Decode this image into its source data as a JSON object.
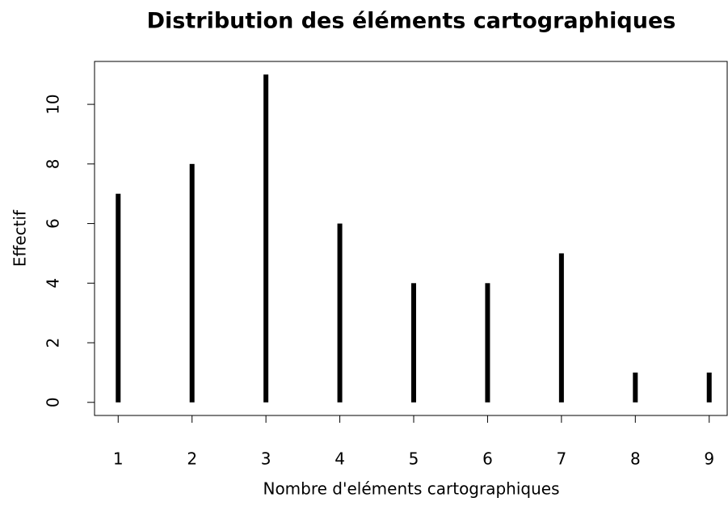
{
  "chart_data": {
    "type": "needle",
    "title": "Distribution des éléments cartographiques",
    "x_label": "Nombre d'eléments cartographiques",
    "y_label": "Effectif",
    "x": [
      1,
      2,
      3,
      4,
      5,
      6,
      7,
      8,
      9
    ],
    "values": [
      7,
      8,
      11,
      6,
      4,
      4,
      5,
      1,
      1
    ],
    "color": "#000000",
    "xlim": [
      0.68,
      9.32
    ],
    "xticks": [
      1,
      2,
      3,
      4,
      5,
      6,
      7,
      8,
      9
    ],
    "ylim": [
      -0.44,
      11.44
    ],
    "yticks": [
      0,
      2,
      4,
      6,
      8,
      10
    ]
  }
}
